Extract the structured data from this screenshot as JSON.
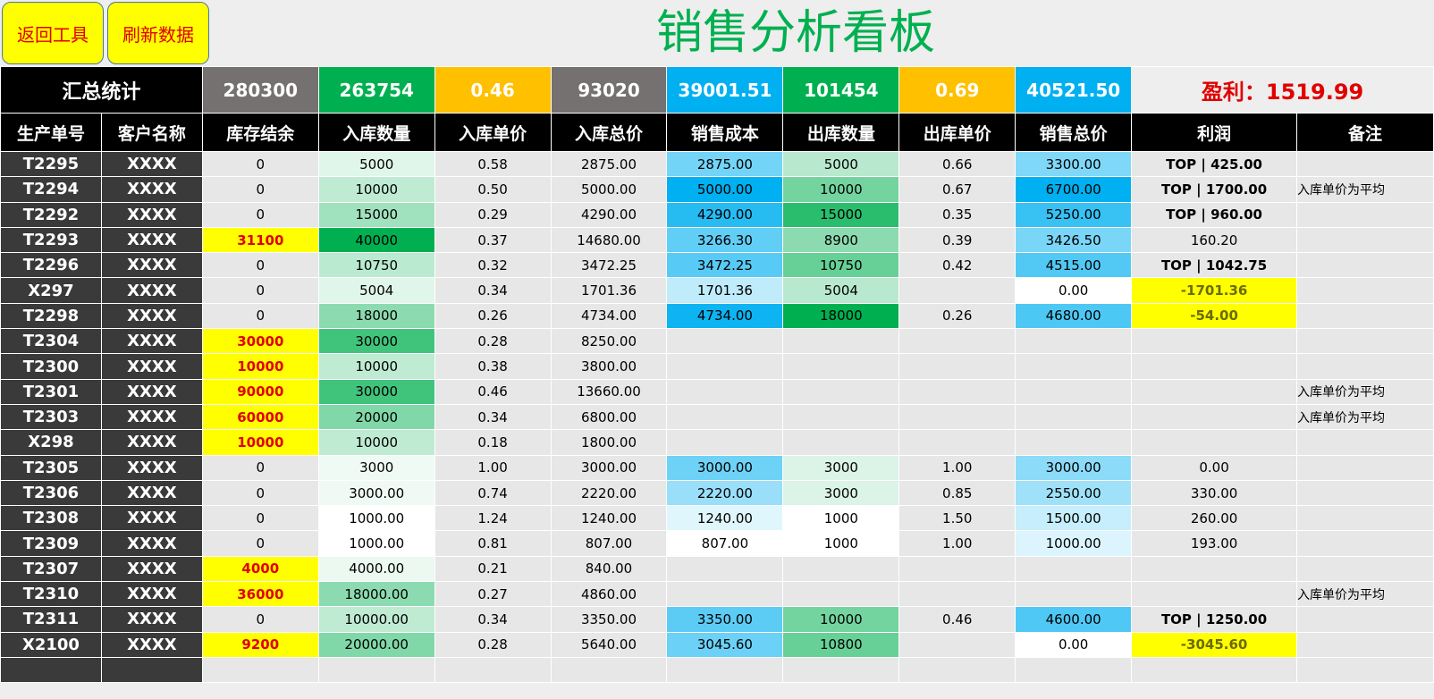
{
  "buttons": {
    "back": "返回工具",
    "refresh": "刷新数据"
  },
  "title": "销售分析看板",
  "summary": {
    "label": "汇总统计",
    "values": [
      {
        "text": "280300",
        "bg": "#767171"
      },
      {
        "text": "263754",
        "bg": "#00b050"
      },
      {
        "text": "0.46",
        "bg": "#ffc000"
      },
      {
        "text": "93020",
        "bg": "#767171"
      },
      {
        "text": "39001.51",
        "bg": "#00b0f0"
      },
      {
        "text": "101454",
        "bg": "#00b050"
      },
      {
        "text": "0.69",
        "bg": "#ffc000"
      },
      {
        "text": "40521.50",
        "bg": "#00b0f0"
      }
    ],
    "profit": "盈利：1519.99"
  },
  "headers": [
    "生产单号",
    "客户名称",
    "库存结余",
    "入库数量",
    "入库单价",
    "入库总价",
    "销售成本",
    "出库数量",
    "出库单价",
    "销售总价",
    "利润",
    "备注"
  ],
  "colors": {
    "in_green": "#00b050",
    "cost_blue": "#00b0f0",
    "stock_yellow": "#ffff00",
    "profit_red": "#e00000"
  },
  "rows": [
    {
      "id": "T2295",
      "cust": "XXXX",
      "stock": "0",
      "stock_flag": false,
      "in_qty": "5000",
      "in_level": 0.12,
      "in_price": "0.58",
      "in_total": "2875.00",
      "cost": "2875.00",
      "cost_level": 0.55,
      "out_qty": "5000",
      "out_level": 0.28,
      "out_price": "0.66",
      "sale_total": "3300.00",
      "sale_level": 0.5,
      "profit": "TOP | 425.00",
      "profit_type": "top",
      "note": ""
    },
    {
      "id": "T2294",
      "cust": "XXXX",
      "stock": "0",
      "stock_flag": false,
      "in_qty": "10000",
      "in_level": 0.25,
      "in_price": "0.50",
      "in_total": "5000.00",
      "cost": "5000.00",
      "cost_level": 1.0,
      "out_qty": "10000",
      "out_level": 0.55,
      "out_price": "0.67",
      "sale_total": "6700.00",
      "sale_level": 1.0,
      "profit": "TOP | 1700.00",
      "profit_type": "top",
      "note": "入库单价为平均"
    },
    {
      "id": "T2292",
      "cust": "XXXX",
      "stock": "0",
      "stock_flag": false,
      "in_qty": "15000",
      "in_level": 0.37,
      "in_price": "0.29",
      "in_total": "4290.00",
      "cost": "4290.00",
      "cost_level": 0.85,
      "out_qty": "15000",
      "out_level": 0.83,
      "out_price": "0.35",
      "sale_total": "5250.00",
      "sale_level": 0.78,
      "profit": "TOP | 960.00",
      "profit_type": "top",
      "note": ""
    },
    {
      "id": "T2293",
      "cust": "XXXX",
      "stock": "31100",
      "stock_flag": true,
      "in_qty": "40000",
      "in_level": 1.0,
      "in_price": "0.37",
      "in_total": "14680.00",
      "cost": "3266.30",
      "cost_level": 0.62,
      "out_qty": "8900",
      "out_level": 0.45,
      "out_price": "0.39",
      "sale_total": "3426.50",
      "sale_level": 0.52,
      "profit": "160.20",
      "profit_type": "plain",
      "note": ""
    },
    {
      "id": "T2296",
      "cust": "XXXX",
      "stock": "0",
      "stock_flag": false,
      "in_qty": "10750",
      "in_level": 0.27,
      "in_price": "0.32",
      "in_total": "3472.25",
      "cost": "3472.25",
      "cost_level": 0.66,
      "out_qty": "10750",
      "out_level": 0.6,
      "out_price": "0.42",
      "sale_total": "4515.00",
      "sale_level": 0.68,
      "profit": "TOP | 1042.75",
      "profit_type": "top",
      "note": ""
    },
    {
      "id": "X297",
      "cust": "XXXX",
      "stock": "0",
      "stock_flag": false,
      "in_qty": "5004",
      "in_level": 0.12,
      "in_price": "0.34",
      "in_total": "1701.36",
      "cost": "1701.36",
      "cost_level": 0.25,
      "out_qty": "5004",
      "out_level": 0.28,
      "out_price": "",
      "sale_total": "0.00",
      "sale_level": 0.0,
      "profit": "-1701.36",
      "profit_type": "neg",
      "note": ""
    },
    {
      "id": "T2298",
      "cust": "XXXX",
      "stock": "0",
      "stock_flag": false,
      "in_qty": "18000",
      "in_level": 0.45,
      "in_price": "0.26",
      "in_total": "4734.00",
      "cost": "4734.00",
      "cost_level": 0.95,
      "out_qty": "18000",
      "out_level": 1.0,
      "out_price": "0.26",
      "sale_total": "4680.00",
      "sale_level": 0.7,
      "profit": "-54.00",
      "profit_type": "neg",
      "note": ""
    },
    {
      "id": "T2304",
      "cust": "XXXX",
      "stock": "30000",
      "stock_flag": true,
      "in_qty": "30000",
      "in_level": 0.75,
      "in_price": "0.28",
      "in_total": "8250.00",
      "cost": "",
      "cost_level": -1,
      "out_qty": "",
      "out_level": -1,
      "out_price": "",
      "sale_total": "",
      "sale_level": -1,
      "profit": "",
      "profit_type": "plain",
      "note": ""
    },
    {
      "id": "T2300",
      "cust": "XXXX",
      "stock": "10000",
      "stock_flag": true,
      "in_qty": "10000",
      "in_level": 0.25,
      "in_price": "0.38",
      "in_total": "3800.00",
      "cost": "",
      "cost_level": -1,
      "out_qty": "",
      "out_level": -1,
      "out_price": "",
      "sale_total": "",
      "sale_level": -1,
      "profit": "",
      "profit_type": "plain",
      "note": ""
    },
    {
      "id": "T2301",
      "cust": "XXXX",
      "stock": "90000",
      "stock_flag": true,
      "in_qty": "30000",
      "in_level": 0.75,
      "in_price": "0.46",
      "in_total": "13660.00",
      "cost": "",
      "cost_level": -1,
      "out_qty": "",
      "out_level": -1,
      "out_price": "",
      "sale_total": "",
      "sale_level": -1,
      "profit": "",
      "profit_type": "plain",
      "note": "入库单价为平均"
    },
    {
      "id": "T2303",
      "cust": "XXXX",
      "stock": "60000",
      "stock_flag": true,
      "in_qty": "20000",
      "in_level": 0.5,
      "in_price": "0.34",
      "in_total": "6800.00",
      "cost": "",
      "cost_level": -1,
      "out_qty": "",
      "out_level": -1,
      "out_price": "",
      "sale_total": "",
      "sale_level": -1,
      "profit": "",
      "profit_type": "plain",
      "note": "入库单价为平均"
    },
    {
      "id": "X298",
      "cust": "XXXX",
      "stock": "10000",
      "stock_flag": true,
      "in_qty": "10000",
      "in_level": 0.25,
      "in_price": "0.18",
      "in_total": "1800.00",
      "cost": "",
      "cost_level": -1,
      "out_qty": "",
      "out_level": -1,
      "out_price": "",
      "sale_total": "",
      "sale_level": -1,
      "profit": "",
      "profit_type": "plain",
      "note": ""
    },
    {
      "id": "T2305",
      "cust": "XXXX",
      "stock": "0",
      "stock_flag": false,
      "in_qty": "3000",
      "in_level": 0.06,
      "in_price": "1.00",
      "in_total": "3000.00",
      "cost": "3000.00",
      "cost_level": 0.57,
      "out_qty": "3000",
      "out_level": 0.14,
      "out_price": "1.00",
      "sale_total": "3000.00",
      "sale_level": 0.45,
      "profit": "0.00",
      "profit_type": "plain",
      "note": ""
    },
    {
      "id": "T2306",
      "cust": "XXXX",
      "stock": "0",
      "stock_flag": false,
      "in_qty": "3000.00",
      "in_level": 0.06,
      "in_price": "0.74",
      "in_total": "2220.00",
      "cost": "2220.00",
      "cost_level": 0.4,
      "out_qty": "3000",
      "out_level": 0.14,
      "out_price": "0.85",
      "sale_total": "2550.00",
      "sale_level": 0.38,
      "profit": "330.00",
      "profit_type": "plain",
      "note": ""
    },
    {
      "id": "T2308",
      "cust": "XXXX",
      "stock": "0",
      "stock_flag": false,
      "in_qty": "1000.00",
      "in_level": 0.0,
      "in_price": "1.24",
      "in_total": "1240.00",
      "cost": "1240.00",
      "cost_level": 0.12,
      "out_qty": "1000",
      "out_level": 0.0,
      "out_price": "1.50",
      "sale_total": "1500.00",
      "sale_level": 0.22,
      "profit": "260.00",
      "profit_type": "plain",
      "note": ""
    },
    {
      "id": "T2309",
      "cust": "XXXX",
      "stock": "0",
      "stock_flag": false,
      "in_qty": "1000.00",
      "in_level": 0.0,
      "in_price": "0.81",
      "in_total": "807.00",
      "cost": "807.00",
      "cost_level": 0.0,
      "out_qty": "1000",
      "out_level": 0.0,
      "out_price": "1.00",
      "sale_total": "1000.00",
      "sale_level": 0.14,
      "profit": "193.00",
      "profit_type": "plain",
      "note": ""
    },
    {
      "id": "T2307",
      "cust": "XXXX",
      "stock": "4000",
      "stock_flag": true,
      "in_qty": "4000.00",
      "in_level": 0.08,
      "in_price": "0.21",
      "in_total": "840.00",
      "cost": "",
      "cost_level": -1,
      "out_qty": "",
      "out_level": -1,
      "out_price": "",
      "sale_total": "",
      "sale_level": -1,
      "profit": "",
      "profit_type": "plain",
      "note": ""
    },
    {
      "id": "T2310",
      "cust": "XXXX",
      "stock": "36000",
      "stock_flag": true,
      "in_qty": "18000.00",
      "in_level": 0.45,
      "in_price": "0.27",
      "in_total": "4860.00",
      "cost": "",
      "cost_level": -1,
      "out_qty": "",
      "out_level": -1,
      "out_price": "",
      "sale_total": "",
      "sale_level": -1,
      "profit": "",
      "profit_type": "plain",
      "note": "入库单价为平均"
    },
    {
      "id": "T2311",
      "cust": "XXXX",
      "stock": "0",
      "stock_flag": false,
      "in_qty": "10000.00",
      "in_level": 0.25,
      "in_price": "0.34",
      "in_total": "3350.00",
      "cost": "3350.00",
      "cost_level": 0.64,
      "out_qty": "10000",
      "out_level": 0.55,
      "out_price": "0.46",
      "sale_total": "4600.00",
      "sale_level": 0.69,
      "profit": "TOP | 1250.00",
      "profit_type": "top",
      "note": ""
    },
    {
      "id": "X2100",
      "cust": "XXXX",
      "stock": "9200",
      "stock_flag": true,
      "in_qty": "20000.00",
      "in_level": 0.5,
      "in_price": "0.28",
      "in_total": "5640.00",
      "cost": "3045.60",
      "cost_level": 0.58,
      "out_qty": "10800",
      "out_level": 0.6,
      "out_price": "",
      "sale_total": "0.00",
      "sale_level": 0.0,
      "profit": "-3045.60",
      "profit_type": "neg",
      "note": ""
    },
    {
      "id": "",
      "cust": "",
      "stock": "",
      "stock_flag": false,
      "in_qty": "",
      "in_level": -1,
      "in_price": "",
      "in_total": "",
      "cost": "",
      "cost_level": -1,
      "out_qty": "",
      "out_level": -1,
      "out_price": "",
      "sale_total": "",
      "sale_level": -1,
      "profit": "",
      "profit_type": "plain",
      "note": ""
    }
  ]
}
